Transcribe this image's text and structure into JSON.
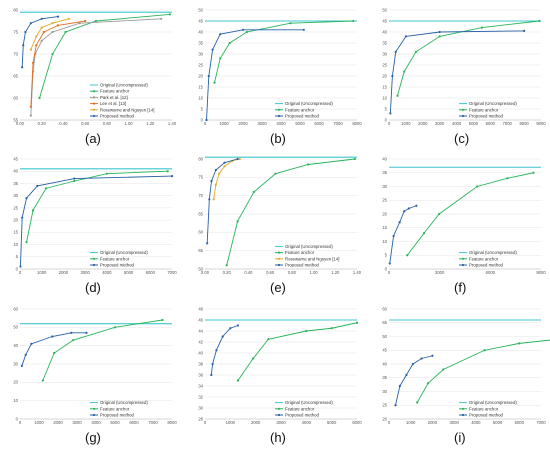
{
  "colors": {
    "original": "#3fc6cf",
    "feature": "#27b45a",
    "proposed": "#2760a8",
    "park": "#9a9a9a",
    "lee": "#e0701e",
    "rosewarne": "#e3a72b"
  },
  "chart_data": [
    {
      "type": "line",
      "caption": "(a)",
      "xlim": [
        0,
        1.4
      ],
      "ylim": [
        55,
        80
      ],
      "xticks": [
        "0.00",
        "0.20",
        "0.40",
        "0.60",
        "0.80",
        "1.00",
        "1.20",
        "1.40"
      ],
      "yticks": [
        "55",
        "60",
        "65",
        "70",
        "75",
        "80"
      ],
      "legend": [
        "Original (Uncompressed)",
        "Feature anchor",
        "Park et al. [12]",
        "Lee et al. [13]",
        "Rosewarne and Nguyen [14]",
        "Proposed method"
      ],
      "series": [
        {
          "name": "Original (Uncompressed)",
          "color": "original",
          "x": [
            0,
            1.4
          ],
          "y": [
            79.5,
            79.5
          ],
          "markers": false
        },
        {
          "name": "Feature anchor",
          "color": "feature",
          "x": [
            0.18,
            0.3,
            0.42,
            0.7,
            1.38
          ],
          "y": [
            60,
            70,
            75,
            77.5,
            79
          ],
          "markers": true
        },
        {
          "name": "Park et al. [12]",
          "color": "park",
          "x": [
            0.1,
            0.12,
            0.14,
            0.2,
            0.3,
            0.55,
            1.3
          ],
          "y": [
            56,
            66,
            70,
            73,
            75,
            77,
            78
          ],
          "markers": true
        },
        {
          "name": "Lee et al. [13]",
          "color": "lee",
          "x": [
            0.1,
            0.12,
            0.15,
            0.22,
            0.35,
            0.6
          ],
          "y": [
            58,
            68,
            72,
            75,
            76.5,
            77.5
          ],
          "markers": true
        },
        {
          "name": "Rosewarne and Nguyen [14]",
          "color": "rosewarne",
          "x": [
            0.1,
            0.15,
            0.2,
            0.3,
            0.45
          ],
          "y": [
            71,
            74,
            76,
            77,
            78
          ],
          "markers": true
        },
        {
          "name": "Proposed method",
          "color": "proposed",
          "x": [
            0.02,
            0.03,
            0.05,
            0.1,
            0.2,
            0.35
          ],
          "y": [
            67,
            72,
            75,
            77,
            78,
            78.5
          ],
          "markers": true
        }
      ]
    },
    {
      "type": "line",
      "caption": "(b)",
      "xlim": [
        0,
        8000
      ],
      "ylim": [
        0,
        50
      ],
      "xticks": [
        "0",
        "1000",
        "2000",
        "3000",
        "4000",
        "5000",
        "6000",
        "7000",
        "8000"
      ],
      "yticks": [
        "0",
        "5",
        "10",
        "15",
        "20",
        "25",
        "30",
        "35",
        "40",
        "45",
        "50"
      ],
      "legend": [
        "Original (Uncompressed)",
        "Feature anchor",
        "Proposed method"
      ],
      "series": [
        {
          "name": "Original (Uncompressed)",
          "color": "original",
          "x": [
            0,
            8000
          ],
          "y": [
            45,
            45
          ],
          "markers": false
        },
        {
          "name": "Feature anchor",
          "color": "feature",
          "x": [
            500,
            800,
            1300,
            2200,
            4500,
            7800
          ],
          "y": [
            17,
            28,
            35,
            40,
            44,
            45
          ],
          "markers": true
        },
        {
          "name": "Proposed method",
          "color": "proposed",
          "x": [
            80,
            200,
            400,
            800,
            2000,
            5200
          ],
          "y": [
            0,
            20,
            32,
            39,
            41,
            41
          ],
          "markers": true
        }
      ]
    },
    {
      "type": "line",
      "caption": "(c)",
      "xlim": [
        0,
        9000
      ],
      "ylim": [
        0,
        50
      ],
      "xticks": [
        "0",
        "1000",
        "2000",
        "3000",
        "4000",
        "5000",
        "6000",
        "7000",
        "8000",
        "9000"
      ],
      "yticks": [
        "0",
        "5",
        "10",
        "15",
        "20",
        "25",
        "30",
        "35",
        "40",
        "45",
        "50"
      ],
      "legend": [
        "Original (Uncompressed)",
        "Feature anchor",
        "Proposed method"
      ],
      "series": [
        {
          "name": "Original (Uncompressed)",
          "color": "original",
          "x": [
            0,
            9000
          ],
          "y": [
            45,
            45
          ],
          "markers": false
        },
        {
          "name": "Feature anchor",
          "color": "feature",
          "x": [
            500,
            900,
            1600,
            3000,
            5500,
            8900
          ],
          "y": [
            11,
            22,
            31,
            38,
            42,
            45
          ],
          "markers": true
        },
        {
          "name": "Proposed method",
          "color": "proposed",
          "x": [
            80,
            200,
            400,
            1000,
            3000,
            8000
          ],
          "y": [
            3,
            20,
            31,
            38,
            40,
            40.5
          ],
          "markers": true
        }
      ]
    },
    {
      "type": "line",
      "caption": "(d)",
      "xlim": [
        0,
        7000
      ],
      "ylim": [
        0,
        45
      ],
      "xticks": [
        "0",
        "1000",
        "2000",
        "3000",
        "4000",
        "5000",
        "6000",
        "7000"
      ],
      "yticks": [
        "0",
        "5",
        "10",
        "15",
        "20",
        "25",
        "30",
        "35",
        "40",
        "45"
      ],
      "legend": [
        "Original (Uncompressed)",
        "Feature anchor",
        "Proposed method"
      ],
      "series": [
        {
          "name": "Original (Uncompressed)",
          "color": "original",
          "x": [
            0,
            7000
          ],
          "y": [
            41,
            41
          ],
          "markers": false
        },
        {
          "name": "Feature anchor",
          "color": "feature",
          "x": [
            300,
            600,
            1200,
            2500,
            4000,
            6800
          ],
          "y": [
            11,
            24,
            33,
            36,
            39,
            40
          ],
          "markers": true
        },
        {
          "name": "Proposed method",
          "color": "proposed",
          "x": [
            20,
            100,
            300,
            800,
            2500,
            7000
          ],
          "y": [
            1,
            21,
            29,
            34,
            37,
            38
          ],
          "markers": true
        }
      ]
    },
    {
      "type": "line",
      "caption": "(e)",
      "xlim": [
        0,
        1.4
      ],
      "ylim": [
        50,
        80
      ],
      "xticks": [
        "0.00",
        "0.20",
        "0.40",
        "0.60",
        "0.80",
        "1.00",
        "1.20",
        "1.40"
      ],
      "yticks": [
        "50",
        "55",
        "60",
        "65",
        "70",
        "75",
        "80"
      ],
      "legend": [
        "Original (Uncompressed)",
        "Feature anchor",
        "Rosewarne and Nguyen [14]",
        "Proposed method"
      ],
      "series": [
        {
          "name": "Original (Uncompressed)",
          "color": "original",
          "x": [
            0,
            1.4
          ],
          "y": [
            80.5,
            80.5
          ],
          "markers": false
        },
        {
          "name": "Feature anchor",
          "color": "feature",
          "x": [
            0.2,
            0.3,
            0.45,
            0.65,
            0.95,
            1.38
          ],
          "y": [
            51,
            63,
            71,
            76,
            78.5,
            80
          ],
          "markers": true
        },
        {
          "name": "Rosewarne and Nguyen [14]",
          "color": "rosewarne",
          "x": [
            0.08,
            0.1,
            0.13,
            0.18,
            0.25,
            0.32
          ],
          "y": [
            69,
            73,
            76,
            78,
            79.5,
            80
          ],
          "markers": true
        },
        {
          "name": "Proposed method",
          "color": "proposed",
          "x": [
            0.02,
            0.04,
            0.06,
            0.1,
            0.18,
            0.3
          ],
          "y": [
            57,
            69,
            74,
            77,
            79,
            80
          ],
          "markers": true
        }
      ]
    },
    {
      "type": "line",
      "caption": "(f)",
      "xlim": [
        0,
        10000
      ],
      "ylim": [
        0,
        40
      ],
      "xticks": [
        "0",
        "3000",
        "6000",
        "9000"
      ],
      "yticks": [
        "0",
        "5",
        "10",
        "15",
        "20",
        "25",
        "30",
        "35",
        "40"
      ],
      "legend": [
        "Original (Uncompressed)",
        "Feature anchor",
        "Proposed method"
      ],
      "series": [
        {
          "name": "Original (Uncompressed)",
          "color": "original",
          "x": [
            0,
            10000
          ],
          "y": [
            37,
            37
          ],
          "markers": false
        },
        {
          "name": "Feature anchor",
          "color": "feature",
          "x": [
            1200,
            2300,
            3300,
            5800,
            7800,
            9500
          ],
          "y": [
            5,
            13,
            20,
            30,
            33,
            35
          ],
          "markers": true
        },
        {
          "name": "Proposed method",
          "color": "proposed",
          "x": [
            50,
            300,
            700,
            1000,
            1300,
            1800
          ],
          "y": [
            2,
            12,
            17,
            21,
            22,
            23
          ],
          "markers": true
        }
      ]
    },
    {
      "type": "line",
      "caption": "(g)",
      "xlim": [
        0,
        8000
      ],
      "ylim": [
        0,
        60
      ],
      "xticks": [
        "0",
        "1000",
        "2000",
        "3000",
        "4000",
        "5000",
        "6000",
        "7000",
        "8000"
      ],
      "yticks": [
        "0",
        "10",
        "20",
        "30",
        "40",
        "50",
        "60"
      ],
      "legend": [
        "Original (Uncompressed)",
        "Feature anchor",
        "Proposed method"
      ],
      "series": [
        {
          "name": "Original (Uncompressed)",
          "color": "original",
          "x": [
            0,
            8000
          ],
          "y": [
            52,
            52
          ],
          "markers": false
        },
        {
          "name": "Feature anchor",
          "color": "feature",
          "x": [
            1200,
            1800,
            2800,
            5000,
            7500
          ],
          "y": [
            21,
            36,
            43,
            50,
            54
          ],
          "markers": true
        },
        {
          "name": "Proposed method",
          "color": "proposed",
          "x": [
            100,
            300,
            600,
            1700,
            2700,
            3500
          ],
          "y": [
            29,
            35,
            41,
            45,
            47,
            47
          ],
          "markers": true
        }
      ]
    },
    {
      "type": "line",
      "caption": "(h)",
      "xlim": [
        0,
        6000
      ],
      "ylim": [
        28,
        48
      ],
      "xticks": [
        "0",
        "1000",
        "2000",
        "3000",
        "4000",
        "5000",
        "6000"
      ],
      "yticks": [
        "28",
        "30",
        "32",
        "34",
        "36",
        "38",
        "40",
        "42",
        "44",
        "46",
        "48"
      ],
      "legend": [
        "Original (Uncompressed)",
        "Feature anchor",
        "Proposed method"
      ],
      "series": [
        {
          "name": "Original (Uncompressed)",
          "color": "original",
          "x": [
            0,
            6000
          ],
          "y": [
            46,
            46
          ],
          "markers": false
        },
        {
          "name": "Feature anchor",
          "color": "feature",
          "x": [
            1300,
            1900,
            2500,
            4000,
            5000,
            6000
          ],
          "y": [
            35,
            39,
            42.5,
            44,
            44.5,
            45.5
          ],
          "markers": true
        },
        {
          "name": "Proposed method",
          "color": "proposed",
          "x": [
            250,
            300,
            450,
            700,
            1000,
            1300
          ],
          "y": [
            36,
            38,
            40.5,
            43,
            44.5,
            45
          ],
          "markers": true
        }
      ]
    },
    {
      "type": "line",
      "caption": "(i)",
      "xlim": [
        0,
        7000
      ],
      "ylim": [
        20,
        60
      ],
      "xticks": [
        "0",
        "1000",
        "2000",
        "3000",
        "4000",
        "5000",
        "6000",
        "7000"
      ],
      "yticks": [
        "20",
        "25",
        "30",
        "35",
        "40",
        "45",
        "50",
        "55",
        "60"
      ],
      "legend": [
        "Original (Uncompressed)",
        "Feature anchor",
        "Proposed method"
      ],
      "series": [
        {
          "name": "Original (Uncompressed)",
          "color": "original",
          "x": [
            0,
            7000
          ],
          "y": [
            56,
            56
          ],
          "markers": false
        },
        {
          "name": "Feature anchor",
          "color": "feature",
          "x": [
            1300,
            1800,
            2500,
            4400,
            6000,
            7800
          ],
          "y": [
            26,
            33,
            38,
            45,
            47.5,
            49
          ],
          "markers": true
        },
        {
          "name": "Proposed method",
          "color": "proposed",
          "x": [
            300,
            500,
            800,
            1100,
            1500,
            2000
          ],
          "y": [
            25,
            32,
            36,
            40,
            42,
            43
          ],
          "markers": true
        }
      ]
    }
  ]
}
